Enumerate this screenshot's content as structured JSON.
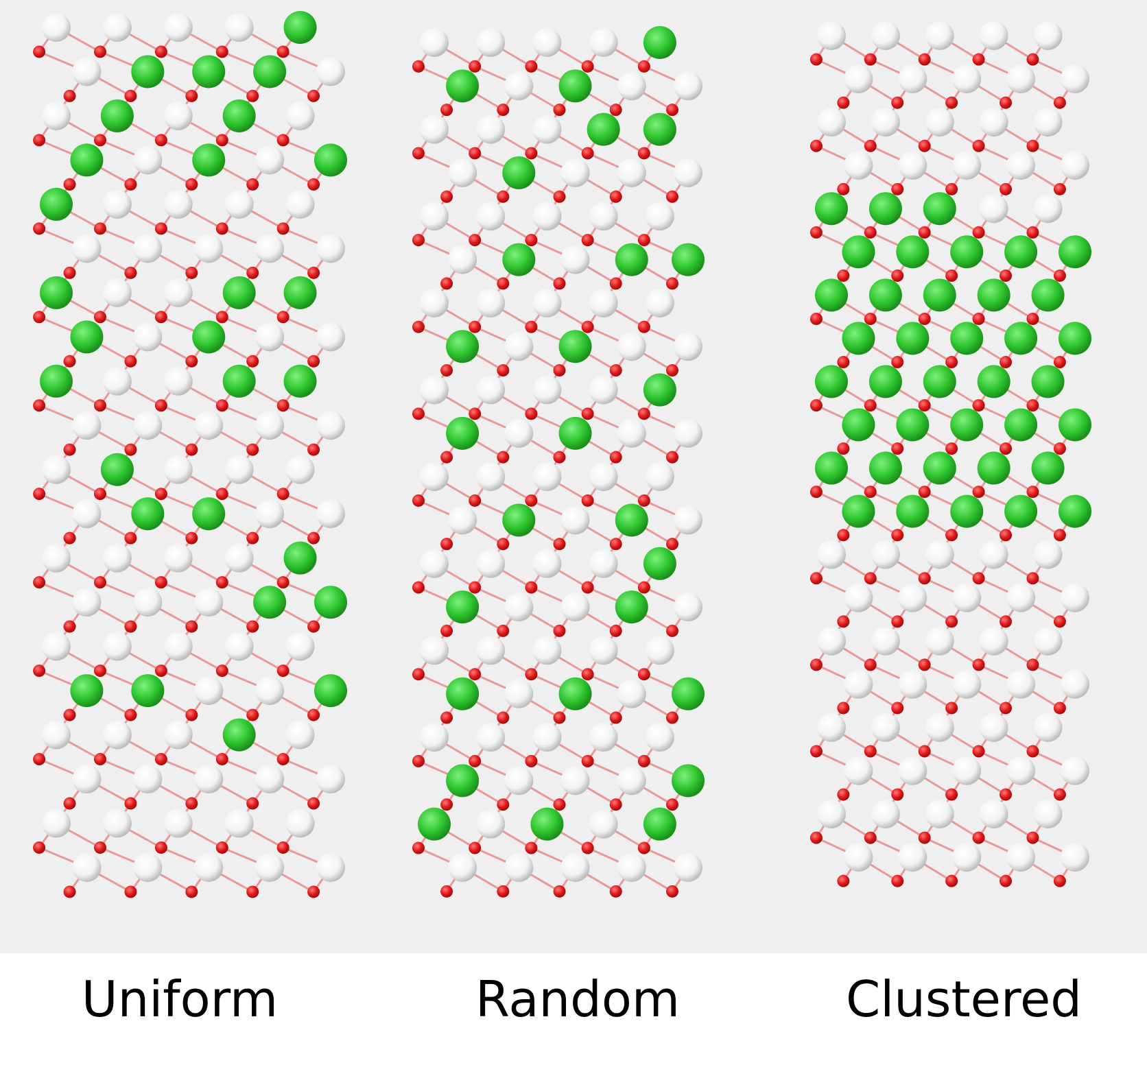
{
  "figure": {
    "background_color": "#efefef",
    "atom_colors": {
      "light_atom": "#f2f2f2",
      "dopant_atom": "#2fc62f",
      "oxygen_atom": "#e01818",
      "bond": "#e88a8a"
    },
    "panels": [
      {
        "caption": "Uniform",
        "distribution": "uniform",
        "rows": 20,
        "columns": 5,
        "dopant_sites": [
          [
            0,
            4
          ],
          [
            1,
            1
          ],
          [
            1,
            2
          ],
          [
            1,
            3
          ],
          [
            2,
            1
          ],
          [
            2,
            3
          ],
          [
            3,
            0
          ],
          [
            3,
            2
          ],
          [
            3,
            4
          ],
          [
            4,
            0
          ],
          [
            6,
            0
          ],
          [
            6,
            3
          ],
          [
            6,
            4
          ],
          [
            7,
            0
          ],
          [
            7,
            2
          ],
          [
            8,
            0
          ],
          [
            8,
            3
          ],
          [
            8,
            4
          ],
          [
            10,
            1
          ],
          [
            11,
            1
          ],
          [
            11,
            2
          ],
          [
            12,
            4
          ],
          [
            13,
            3
          ],
          [
            13,
            4
          ],
          [
            15,
            0
          ],
          [
            15,
            1
          ],
          [
            15,
            4
          ],
          [
            16,
            3
          ]
        ]
      },
      {
        "caption": "Random",
        "distribution": "random",
        "rows": 20,
        "columns": 5,
        "dopant_sites": [
          [
            0,
            4
          ],
          [
            1,
            0
          ],
          [
            1,
            2
          ],
          [
            2,
            3
          ],
          [
            2,
            4
          ],
          [
            3,
            1
          ],
          [
            5,
            1
          ],
          [
            5,
            3
          ],
          [
            5,
            4
          ],
          [
            7,
            0
          ],
          [
            7,
            2
          ],
          [
            8,
            4
          ],
          [
            9,
            0
          ],
          [
            9,
            2
          ],
          [
            11,
            1
          ],
          [
            11,
            3
          ],
          [
            12,
            4
          ],
          [
            13,
            0
          ],
          [
            13,
            3
          ],
          [
            15,
            0
          ],
          [
            15,
            2
          ],
          [
            15,
            4
          ],
          [
            17,
            0
          ],
          [
            17,
            4
          ],
          [
            18,
            0
          ],
          [
            18,
            2
          ],
          [
            18,
            4
          ]
        ]
      },
      {
        "caption": "Clustered",
        "distribution": "clustered",
        "rows": 20,
        "columns": 5,
        "dopant_sites": [
          [
            4,
            0
          ],
          [
            4,
            1
          ],
          [
            4,
            2
          ],
          [
            5,
            0
          ],
          [
            5,
            1
          ],
          [
            5,
            2
          ],
          [
            5,
            3
          ],
          [
            5,
            4
          ],
          [
            6,
            0
          ],
          [
            6,
            1
          ],
          [
            6,
            2
          ],
          [
            6,
            3
          ],
          [
            6,
            4
          ],
          [
            7,
            0
          ],
          [
            7,
            1
          ],
          [
            7,
            2
          ],
          [
            7,
            3
          ],
          [
            7,
            4
          ],
          [
            8,
            0
          ],
          [
            8,
            1
          ],
          [
            8,
            2
          ],
          [
            8,
            3
          ],
          [
            8,
            4
          ],
          [
            9,
            0
          ],
          [
            9,
            1
          ],
          [
            9,
            2
          ],
          [
            9,
            3
          ],
          [
            9,
            4
          ],
          [
            10,
            0
          ],
          [
            10,
            1
          ],
          [
            10,
            2
          ],
          [
            10,
            3
          ],
          [
            10,
            4
          ],
          [
            11,
            0
          ],
          [
            11,
            1
          ],
          [
            11,
            2
          ],
          [
            11,
            3
          ],
          [
            11,
            4
          ]
        ]
      }
    ]
  }
}
